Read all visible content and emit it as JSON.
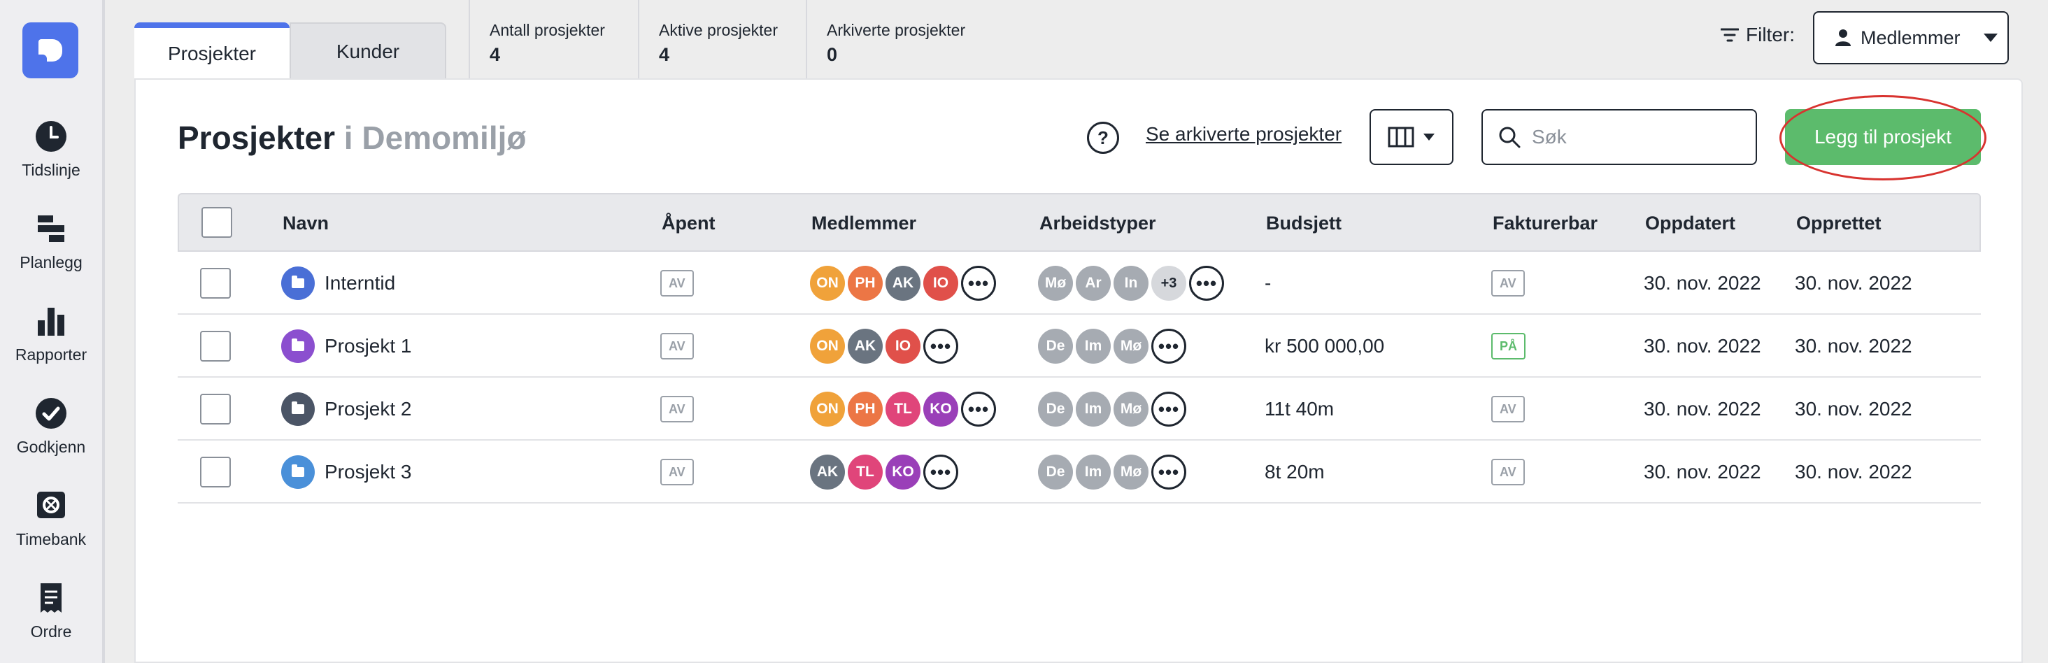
{
  "sidebar": {
    "items": [
      {
        "label": "Tidslinje",
        "icon": "clock-icon"
      },
      {
        "label": "Planlegg",
        "icon": "planner-icon"
      },
      {
        "label": "Rapporter",
        "icon": "bar-chart-icon"
      },
      {
        "label": "Godkjenn",
        "icon": "check-circle-icon"
      },
      {
        "label": "Timebank",
        "icon": "safe-icon"
      },
      {
        "label": "Ordre",
        "icon": "receipt-icon"
      }
    ]
  },
  "tabs": [
    {
      "label": "Prosjekter",
      "active": true
    },
    {
      "label": "Kunder",
      "active": false
    }
  ],
  "stats": [
    {
      "label": "Antall prosjekter",
      "value": "4"
    },
    {
      "label": "Aktive prosjekter",
      "value": "4"
    },
    {
      "label": "Arkiverte prosjekter",
      "value": "0"
    }
  ],
  "filter": {
    "label": "Filter:",
    "selected": "Medlemmer"
  },
  "page": {
    "title": "Prosjekter",
    "workspace": "i Demomiljø",
    "help": "?",
    "archived_link": "Se arkiverte prosjekter",
    "search_placeholder": "Søk",
    "add_button": "Legg til prosjekt"
  },
  "table": {
    "headers": [
      "Navn",
      "Åpent",
      "Medlemmer",
      "Arbeidstyper",
      "Budsjett",
      "Fakturerbar",
      "Oppdatert",
      "Opprettet"
    ],
    "rows": [
      {
        "name": "Interntid",
        "folder_color": "#4a6fd6",
        "open": "AV",
        "members": [
          {
            "i": "ON",
            "c": "#f0a23a"
          },
          {
            "i": "PH",
            "c": "#ec7645"
          },
          {
            "i": "AK",
            "c": "#6a7480"
          },
          {
            "i": "IO",
            "c": "#e0504a"
          }
        ],
        "worktypes": [
          {
            "i": "Mø"
          },
          {
            "i": "Ar"
          },
          {
            "i": "In"
          }
        ],
        "worktypes_extra": "+3",
        "budget": "-",
        "billable": "AV",
        "updated": "30. nov. 2022",
        "created": "30. nov. 2022"
      },
      {
        "name": "Prosjekt 1",
        "folder_color": "#8b4fcf",
        "open": "AV",
        "members": [
          {
            "i": "ON",
            "c": "#f0a23a"
          },
          {
            "i": "AK",
            "c": "#6a7480"
          },
          {
            "i": "IO",
            "c": "#e0504a"
          }
        ],
        "worktypes": [
          {
            "i": "De"
          },
          {
            "i": "Im"
          },
          {
            "i": "Mø"
          }
        ],
        "worktypes_extra": "",
        "budget": "kr 500 000,00",
        "billable": "PÅ",
        "updated": "30. nov. 2022",
        "created": "30. nov. 2022"
      },
      {
        "name": "Prosjekt 2",
        "folder_color": "#4b5566",
        "open": "AV",
        "members": [
          {
            "i": "ON",
            "c": "#f0a23a"
          },
          {
            "i": "PH",
            "c": "#ec7645"
          },
          {
            "i": "TL",
            "c": "#e0457a"
          },
          {
            "i": "KO",
            "c": "#9a3fb8"
          }
        ],
        "worktypes": [
          {
            "i": "De"
          },
          {
            "i": "Im"
          },
          {
            "i": "Mø"
          }
        ],
        "worktypes_extra": "",
        "budget": "11t 40m",
        "billable": "AV",
        "updated": "30. nov. 2022",
        "created": "30. nov. 2022"
      },
      {
        "name": "Prosjekt 3",
        "folder_color": "#4a90d9",
        "open": "AV",
        "members": [
          {
            "i": "AK",
            "c": "#6a7480"
          },
          {
            "i": "TL",
            "c": "#e0457a"
          },
          {
            "i": "KO",
            "c": "#9a3fb8"
          }
        ],
        "worktypes": [
          {
            "i": "De"
          },
          {
            "i": "Im"
          },
          {
            "i": "Mø"
          }
        ],
        "worktypes_extra": "",
        "budget": "8t 20m",
        "billable": "AV",
        "updated": "30. nov. 2022",
        "created": "30. nov. 2022"
      }
    ]
  },
  "colors": {
    "accent": "#4e73ea",
    "add_button": "#5cbb6c",
    "annotation": "#d8332f",
    "worktype_avatar": "#a6abb2"
  }
}
